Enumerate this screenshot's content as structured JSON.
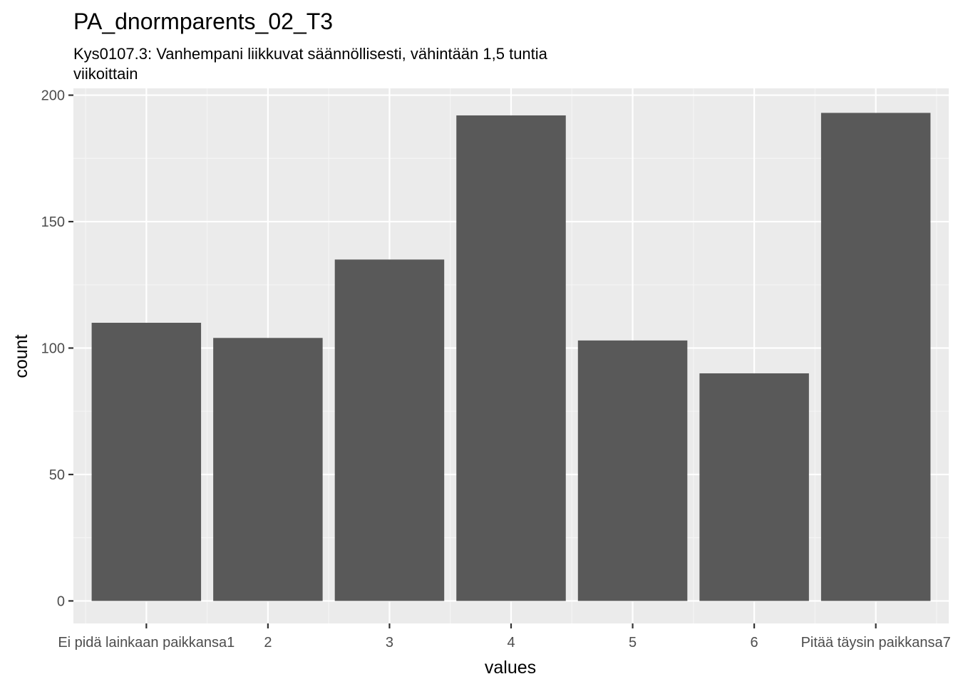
{
  "chart_data": {
    "type": "bar",
    "title": "PA_dnormparents_02_T3",
    "subtitle_lines": [
      "Kys0107.3: Vanhempani liikkuvat säännöllisesti, vähintään 1,5 tuntia",
      "viikoittain"
    ],
    "xlabel": "values",
    "ylabel": "count",
    "categories": [
      "Ei pidä lainkaan paikkansa1",
      "2",
      "3",
      "4",
      "5",
      "6",
      "Pitää täysin paikkansa7"
    ],
    "values": [
      110,
      104,
      135,
      192,
      103,
      90,
      193
    ],
    "ylim": [
      -8.9,
      202.7
    ],
    "y_ticks": [
      0,
      50,
      100,
      150,
      200
    ],
    "y_tick_labels": [
      "0",
      "50",
      "100",
      "150",
      "200"
    ],
    "grid": true,
    "legend": "none",
    "colors": {
      "bar": "#595959",
      "panel_background": "#ebebeb",
      "grid_major": "#ffffff",
      "grid_minor": "#f5f5f5",
      "tick_label": "#4d4d4d",
      "axis_title": "#000000"
    }
  }
}
